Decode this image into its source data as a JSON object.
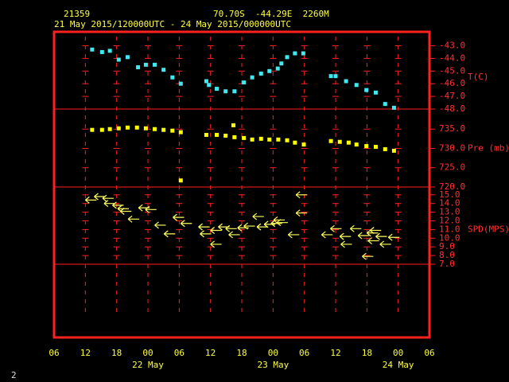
{
  "header": {
    "station": "21359",
    "location": "70.70S  -44.29E  2260M",
    "period": "21 May 2015/120000UTC - 24 May 2015/000000UTC",
    "page": "2"
  },
  "x_axis": {
    "xlim": [
      6,
      78
    ],
    "xticks": [
      {
        "value": 6,
        "label": "06"
      },
      12,
      18,
      {
        "value": 24,
        "label": "00"
      },
      {
        "value": 30,
        "label": "06"
      },
      {
        "value": 36,
        "label": "12"
      },
      {
        "value": 42,
        "label": "18"
      },
      {
        "value": 48,
        "label": "00"
      },
      {
        "value": 54,
        "label": "06"
      },
      {
        "value": 60,
        "label": "12"
      },
      {
        "value": 66,
        "label": "18"
      },
      {
        "value": 72,
        "label": "00"
      },
      {
        "value": 78,
        "label": "06"
      }
    ],
    "date_labels": [
      {
        "value": 24,
        "label": "22 May"
      },
      {
        "value": 48,
        "label": "23 May"
      },
      {
        "value": 72,
        "label": "24 May"
      }
    ]
  },
  "chart_data": [
    {
      "type": "scatter",
      "ylabel": "T(C)",
      "color": "#40e8f0",
      "x": [
        13.3,
        15.2,
        16.7,
        18.4,
        20.1,
        22.1,
        23.6,
        25.3,
        27.0,
        28.7,
        30.3,
        35.2,
        35.7,
        37.2,
        38.9,
        40.6,
        42.4,
        44.0,
        45.7,
        47.3,
        48.9,
        49.6,
        50.7,
        52.2,
        53.8,
        59.1,
        60.0,
        62.0,
        64.0,
        65.9,
        67.7,
        69.5,
        71.2
      ],
      "values": [
        -43.3,
        -43.5,
        -43.4,
        -44.1,
        -43.9,
        -44.7,
        -44.5,
        -44.5,
        -44.9,
        -45.5,
        -46.0,
        -45.8,
        -46.1,
        -46.4,
        -46.6,
        -46.6,
        -45.9,
        -45.5,
        -45.2,
        -45.0,
        -44.8,
        -44.4,
        -43.9,
        -43.6,
        -43.6,
        -45.4,
        -45.4,
        -45.8,
        -46.1,
        -46.5,
        -46.7,
        -47.6,
        -47.9
      ],
      "ylim": [
        -48,
        -41.9
      ],
      "yticks": [
        {
          "value": -43,
          "label": "-43.0"
        },
        {
          "value": -44,
          "label": "-44.0"
        },
        {
          "value": -45,
          "label": "-45.0"
        },
        {
          "value": -46,
          "label": "-46.0"
        },
        {
          "value": -47,
          "label": "-47.0"
        },
        {
          "value": -48,
          "label": "-48.0"
        }
      ]
    },
    {
      "type": "scatter",
      "ylabel": "Pre (mb)",
      "color": "#ffff00",
      "x": [
        13.3,
        15.2,
        16.7,
        18.4,
        20.1,
        21.9,
        23.6,
        25.3,
        27.0,
        28.7,
        30.3,
        30.3,
        35.2,
        37.2,
        38.9,
        40.4,
        40.6,
        42.4,
        44.0,
        45.7,
        47.3,
        49.0,
        50.7,
        52.2,
        53.9,
        59.1,
        60.8,
        62.5,
        64.0,
        65.9,
        67.7,
        69.5,
        71.2
      ],
      "values": [
        734.8,
        734.8,
        735.0,
        735.2,
        735.4,
        735.4,
        735.2,
        735.0,
        734.8,
        734.6,
        734.2,
        721.7,
        733.5,
        733.5,
        733.3,
        736.0,
        732.9,
        732.7,
        732.3,
        732.5,
        732.3,
        732.3,
        732.1,
        731.5,
        731.0,
        731.9,
        731.7,
        731.5,
        731.0,
        730.6,
        730.4,
        729.8,
        729.4
      ],
      "ylim": [
        720,
        740.2
      ],
      "yticks": [
        {
          "value": 735,
          "label": "735.0"
        },
        {
          "value": 730,
          "label": "730.0"
        },
        {
          "value": 725,
          "label": "725.0"
        },
        {
          "value": 720,
          "label": "720.0"
        }
      ]
    },
    {
      "type": "arrow",
      "ylabel": "SPD(MPS)",
      "color": "#ffff60",
      "x": [
        12.0,
        13.7,
        15.3,
        15.6,
        17.2,
        18.2,
        18.7,
        20.2,
        22.2,
        23.5,
        25.3,
        27.1,
        28.8,
        30.3,
        33.7,
        34.0,
        36.0,
        36.0,
        37.5,
        38.9,
        39.5,
        41.2,
        42.4,
        44.1,
        44.9,
        46.3,
        47.6,
        48.1,
        48.7,
        50.9,
        52.4,
        52.4,
        57.3,
        59.0,
        60.8,
        61.0,
        62.8,
        64.3,
        65.1,
        66.0,
        66.2,
        66.6,
        67.7,
        68.5,
        70.1
      ],
      "values": [
        14.4,
        14.8,
        14.6,
        14.0,
        13.8,
        13.4,
        13.1,
        12.2,
        13.5,
        13.3,
        11.5,
        10.5,
        12.4,
        11.7,
        11.3,
        10.5,
        10.9,
        9.3,
        11.3,
        11.1,
        10.4,
        11.2,
        11.4,
        12.5,
        11.3,
        11.6,
        11.7,
        12.1,
        11.8,
        10.4,
        15.0,
        12.9,
        10.4,
        11.1,
        10.2,
        9.3,
        11.1,
        10.3,
        7.9,
        10.6,
        9.7,
        10.9,
        10.2,
        9.3,
        10.1
      ],
      "ylim": [
        7,
        15.9
      ],
      "yticks": [
        {
          "value": 15,
          "label": "15.0"
        },
        {
          "value": 14,
          "label": "14.0"
        },
        {
          "value": 13,
          "label": "13.0"
        },
        {
          "value": 12,
          "label": "12.0"
        },
        {
          "value": 11,
          "label": "11.0"
        },
        {
          "value": 10,
          "label": "10.0"
        },
        {
          "value": 9,
          "label": "9.0"
        },
        {
          "value": 8,
          "label": "8.0"
        },
        {
          "value": 7,
          "label": "7.0"
        }
      ]
    }
  ]
}
